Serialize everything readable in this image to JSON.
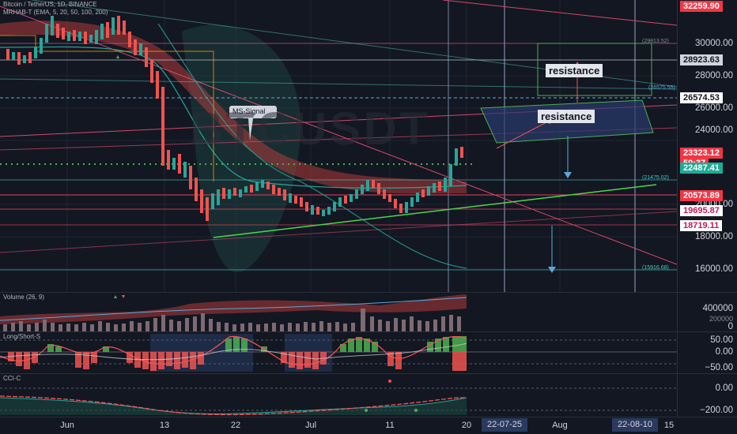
{
  "header": {
    "title": "Bitcoin / TetherUS, 1D, BINANCE",
    "subtitle": "MRHAB-T (EMA, 5, 20, 50, 100, 200)"
  },
  "annotations": {
    "resistance_top": "resistance",
    "resistance_mid": "resistance",
    "ms_signal": "MS-Signal",
    "watermark": "BTCUSDT",
    "level_upper": "(29813.52)",
    "level_mid_right": "(26575.55)",
    "level_lower": "(21475.02)",
    "level_bottom": "(15916.68)"
  },
  "price_axis": {
    "ticks": [
      "30000.00",
      "28000.00",
      "26000.00",
      "24000.00",
      "20000.00",
      "18000.00",
      "16000.00"
    ],
    "tags": {
      "top": "32259.90",
      "level1": "28923.63",
      "level2": "26574.53",
      "current": "23323.12",
      "countdown": "59:37",
      "ema": "22487.41",
      "level3": "20573.89",
      "level4": "19695.87",
      "level5": "18719.11"
    }
  },
  "volume_pane": {
    "label": "Volume (26, 9)",
    "ticks": [
      "400000",
      "200000",
      "0"
    ]
  },
  "longshort_pane": {
    "label": "Long/Short-S",
    "ticks": [
      "50.00",
      "0.00",
      "−50.00"
    ]
  },
  "cci_pane": {
    "label": "CCI-C",
    "ticks": [
      "0.00",
      "−200.00"
    ]
  },
  "time_axis": {
    "labels": [
      "Jun",
      "13",
      "22",
      "Jul",
      "11",
      "20",
      "Aug",
      "15"
    ],
    "highlight_start": "22-07-25",
    "highlight_end": "22-08-10"
  },
  "colors": {
    "background": "#131722",
    "up": "#26a69a",
    "down": "#ef5350",
    "resistance_box": "#4caf50",
    "tag_red": "#f23645",
    "tag_green": "#22ab94"
  }
}
